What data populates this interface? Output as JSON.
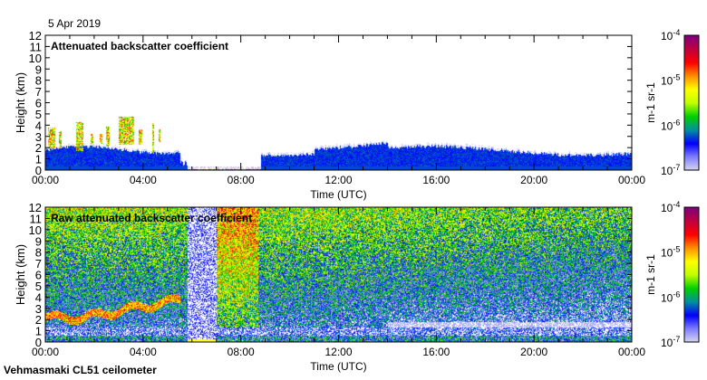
{
  "date": "5 Apr 2019",
  "footer": "Vehmasmaki CL51 ceilometer",
  "chart_data": [
    {
      "type": "heatmap",
      "title": "Attenuated backscatter coefficient",
      "xlabel": "Time (UTC)",
      "ylabel": "Height (km)",
      "xlim": [
        0,
        24
      ],
      "ylim": [
        0,
        12
      ],
      "xticks": [
        "00:00",
        "04:00",
        "08:00",
        "12:00",
        "16:00",
        "20:00",
        "00:00"
      ],
      "yticks": [
        "0",
        "1",
        "2",
        "3",
        "4",
        "5",
        "6",
        "7",
        "8",
        "9",
        "10",
        "11",
        "12"
      ],
      "colorbar": {
        "label": "m-1 sr-1",
        "ticks": [
          "10-7",
          "10-6",
          "10-5",
          "10-4"
        ],
        "scale": "log",
        "range": [
          1e-07,
          0.0001
        ]
      }
    },
    {
      "type": "heatmap",
      "title": "Raw attenuated backscatter coefficient",
      "xlabel": "Time (UTC)",
      "ylabel": "Height (km)",
      "xlim": [
        0,
        24
      ],
      "ylim": [
        0,
        12
      ],
      "xticks": [
        "00:00",
        "04:00",
        "08:00",
        "12:00",
        "16:00",
        "20:00",
        "00:00"
      ],
      "yticks": [
        "0",
        "1",
        "2",
        "3",
        "4",
        "5",
        "6",
        "7",
        "8",
        "9",
        "10",
        "11",
        "12"
      ],
      "colorbar": {
        "label": "m-1 sr-1",
        "ticks": [
          "10-7",
          "10-6",
          "10-5",
          "10-4"
        ],
        "scale": "log",
        "range": [
          1e-07,
          0.0001
        ]
      }
    }
  ],
  "colors": {
    "colormap": [
      "#d8d8ee",
      "#8080ff",
      "#0000ff",
      "#0090a0",
      "#00d000",
      "#c0ff00",
      "#ffff00",
      "#ff9000",
      "#ff0000",
      "#c00040",
      "#800080"
    ]
  }
}
